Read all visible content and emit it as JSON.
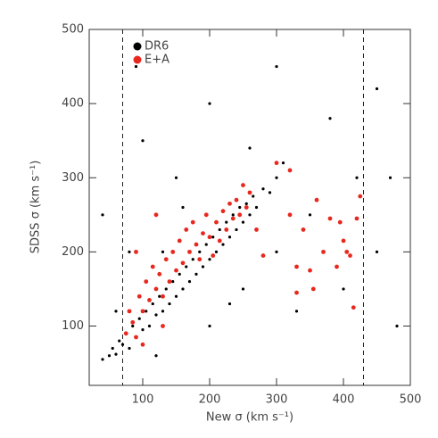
{
  "chart_data": {
    "type": "scatter",
    "xlabel": "New σ (km s⁻¹)",
    "ylabel": "SDSS σ (km s⁻¹)",
    "xlim": [
      20,
      500
    ],
    "ylim": [
      20,
      500
    ],
    "xticks": [
      100,
      200,
      300,
      400,
      500
    ],
    "yticks": [
      100,
      200,
      300,
      400,
      500
    ],
    "vlines": [
      70,
      430
    ],
    "legend": "upper left",
    "series": [
      {
        "name": "DR6",
        "color": "#000000",
        "x": [
          40,
          50,
          55,
          60,
          65,
          70,
          75,
          80,
          85,
          90,
          95,
          100,
          105,
          110,
          115,
          120,
          125,
          130,
          135,
          140,
          145,
          150,
          155,
          160,
          165,
          170,
          175,
          180,
          185,
          190,
          195,
          200,
          205,
          210,
          215,
          220,
          225,
          230,
          235,
          240,
          245,
          250,
          255,
          260,
          265,
          270,
          280,
          290,
          300,
          310,
          60,
          80,
          120,
          150,
          200,
          250,
          300,
          350,
          400,
          420,
          100,
          200,
          300,
          380,
          450,
          480,
          40,
          90,
          330,
          260,
          450,
          160,
          230,
          470,
          130
        ],
        "values": [
          55,
          60,
          70,
          62,
          80,
          75,
          90,
          70,
          100,
          85,
          110,
          95,
          120,
          100,
          130,
          115,
          140,
          120,
          150,
          130,
          160,
          140,
          170,
          150,
          180,
          160,
          190,
          170,
          200,
          180,
          210,
          190,
          220,
          200,
          230,
          210,
          240,
          220,
          250,
          230,
          260,
          240,
          265,
          250,
          275,
          260,
          285,
          280,
          300,
          320,
          120,
          200,
          60,
          300,
          100,
          150,
          200,
          250,
          150,
          300,
          350,
          400,
          450,
          380,
          200,
          100,
          250,
          450,
          120,
          340,
          420,
          260,
          130,
          300,
          200
        ]
      },
      {
        "name": "E+A",
        "color": "#e8281e",
        "x": [
          320,
          330,
          340,
          350,
          355,
          360,
          370,
          380,
          390,
          395,
          400,
          405,
          410,
          415,
          420,
          425,
          320,
          330,
          75,
          80,
          85,
          90,
          95,
          100,
          105,
          110,
          115,
          120,
          125,
          130,
          135,
          140,
          145,
          150,
          155,
          160,
          165,
          170,
          175,
          180,
          185,
          190,
          195,
          200,
          205,
          210,
          215,
          220,
          225,
          230,
          235,
          240,
          245,
          250,
          255,
          260,
          270,
          280,
          120,
          90,
          100,
          130,
          300
        ],
        "values": [
          250,
          180,
          230,
          175,
          150,
          270,
          200,
          245,
          180,
          240,
          215,
          200,
          195,
          125,
          245,
          275,
          310,
          145,
          90,
          120,
          105,
          200,
          140,
          120,
          160,
          135,
          180,
          150,
          170,
          140,
          190,
          160,
          200,
          175,
          215,
          185,
          230,
          200,
          240,
          210,
          190,
          225,
          250,
          220,
          195,
          240,
          215,
          255,
          230,
          265,
          245,
          270,
          250,
          290,
          260,
          280,
          230,
          195,
          250,
          85,
          75,
          100,
          320
        ]
      }
    ]
  }
}
